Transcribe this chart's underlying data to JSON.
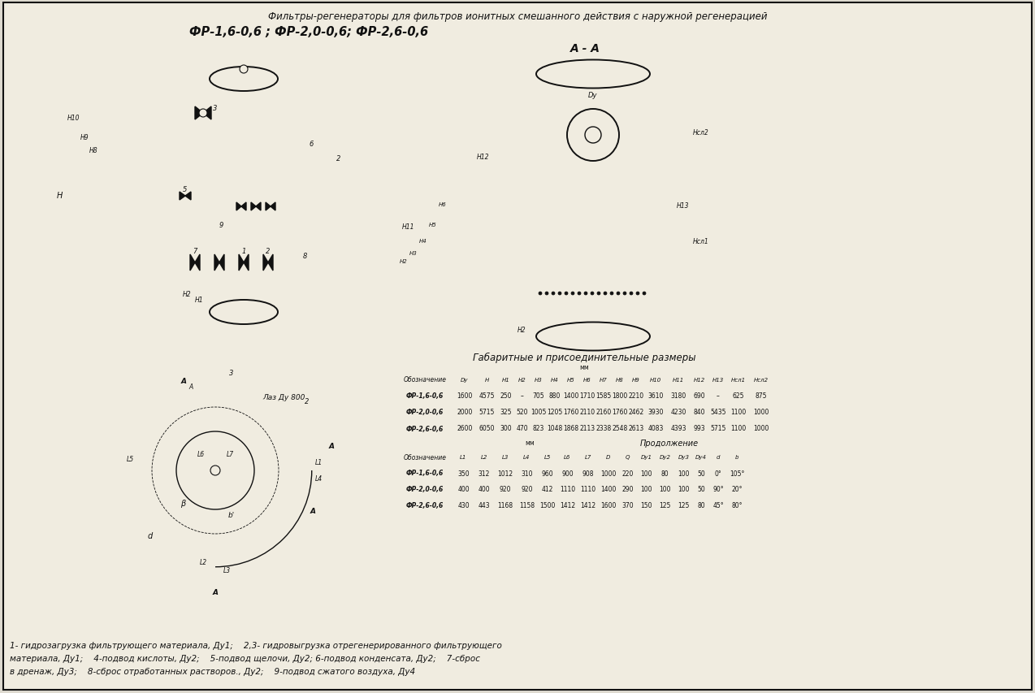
{
  "title_line1": "Фильтры-регенераторы для фильтров ионитных смешанного действия с наружной регенерацией",
  "title_line2": "ФР-1,6-0,6 ; ФР-2,0-0,6; ФР-2,6-0,6",
  "section_label": "А - А",
  "table_title": "Габаритные и присоединительные размеры",
  "table1_headers": [
    "Обозначение",
    "Dy",
    "H",
    "H1",
    "H2",
    "H3",
    "H4",
    "H5",
    "H6",
    "H7",
    "H8",
    "H9",
    "H10",
    "H11",
    "H12",
    "H13",
    "Нсл1",
    "Нсл2"
  ],
  "table1_rows": [
    [
      "ФР-1,6-0,6",
      "1600",
      "4575",
      "250",
      "–",
      "705",
      "880",
      "1400",
      "1710",
      "1585",
      "1800",
      "2210",
      "3610",
      "3180",
      "690",
      "–",
      "625",
      "875"
    ],
    [
      "ФР-2,0-0,6",
      "2000",
      "5715",
      "325",
      "520",
      "1005",
      "1205",
      "1760",
      "2110",
      "2160",
      "1760",
      "2462",
      "3930",
      "4230",
      "840",
      "5435",
      "1100",
      "1000"
    ],
    [
      "ФР-2,6-0,6",
      "2600",
      "6050",
      "300",
      "470",
      "823",
      "1048",
      "1868",
      "2113",
      "2338",
      "2548",
      "2613",
      "4083",
      "4393",
      "993",
      "5715",
      "1100",
      "1000"
    ]
  ],
  "mm_label": "мм",
  "continuation_label": "Продолжение",
  "table2_headers": [
    "Обозначение",
    "L1",
    "L2",
    "L3",
    "L4",
    "L5",
    "L6",
    "L7",
    "D",
    "Q",
    "Dy1",
    "Dy2",
    "Dy3",
    "Dy4",
    "d",
    "b"
  ],
  "table2_rows": [
    [
      "ФР-1,6-0,6",
      "350",
      "312",
      "1012",
      "310",
      "960",
      "900",
      "908",
      "1000",
      "220",
      "100",
      "80",
      "100",
      "50",
      "0°",
      "105°"
    ],
    [
      "ФР-2,0-0,6",
      "400",
      "400",
      "920",
      "920",
      "412",
      "1110",
      "1110",
      "1400",
      "290",
      "100",
      "100",
      "100",
      "50",
      "90°",
      "20°"
    ],
    [
      "ФР-2,6-0,6",
      "430",
      "443",
      "1168",
      "1158",
      "1500",
      "1412",
      "1412",
      "1600",
      "370",
      "150",
      "125",
      "125",
      "80",
      "45°",
      "80°"
    ]
  ],
  "footnote_line1": "1- гидрозагрузка фильтрующего материала, Ду1;    2,3- гидровыгрузка отрегенерированного фильтрующего",
  "footnote_line2": "материала, Ду1;    4-подвод кислоты, Ду2;    5-подвод щелочи, Ду2; 6-подвод конденсата, Ду2;    7-сброс",
  "footnote_line3": "в дренаж, Ду3;    8-сброс отработанных растворов., Ду2;    9-подвод сжатого воздуха, Ду4",
  "bg_color": "#dedad0",
  "line_color": "#111111",
  "text_color": "#111111",
  "white_color": "#f0ece0"
}
